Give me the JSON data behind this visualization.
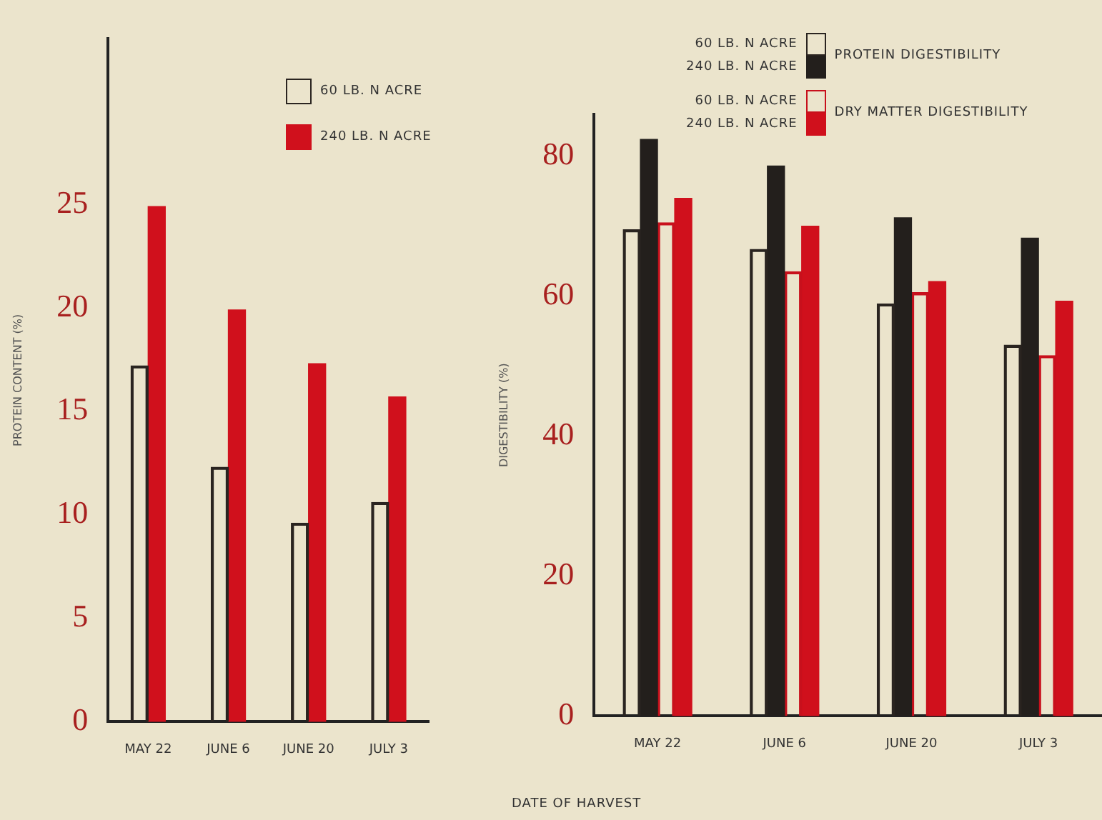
{
  "chart_data": [
    {
      "type": "bar",
      "ylabel": "PROTEIN CONTENT (%)",
      "categories": [
        "MAY 22",
        "JUNE 6",
        "JUNE 20",
        "JULY 3"
      ],
      "series": [
        {
          "name": "60 LB. N ACRE",
          "color": "#2a2420",
          "values": [
            17.2,
            12.3,
            9.6,
            10.6
          ]
        },
        {
          "name": "240 LB. N ACRE",
          "color": "#d0101c",
          "values": [
            24.9,
            19.9,
            17.3,
            15.7
          ]
        }
      ],
      "ylim": [
        0,
        33
      ],
      "yticks": [
        0,
        5,
        10,
        15,
        20,
        25
      ],
      "grid": false,
      "legend": "top"
    },
    {
      "type": "bar",
      "xlabel": "DATE OF HARVEST",
      "ylabel": "DIGESTIBILITY (%)",
      "categories": [
        "MAY 22",
        "JUNE 6",
        "JUNE 20",
        "JULY 3"
      ],
      "series": [
        {
          "name": "60 LB. N ACRE",
          "color": "#2a2420",
          "values": [
            69.5,
            66.7,
            58.9,
            53
          ]
        },
        {
          "name": "240 LB. N ACRE",
          "color": "#231f1c",
          "values": [
            82.4,
            78.6,
            71.2,
            68.3
          ]
        },
        {
          "name": "60 LB. N ACRE",
          "color": "#c8101c",
          "values": [
            70.5,
            63.5,
            60.5,
            51.5
          ]
        },
        {
          "name": "240 LB. N ACRE",
          "color": "#d0101c",
          "values": [
            74,
            70,
            62.1,
            59.3
          ]
        }
      ],
      "annotations": [
        "PROTEIN DIGESTIBILITY",
        "DRY MATTER DIGESTIBILITY"
      ],
      "ylim": [
        0,
        86
      ],
      "yticks": [
        0,
        20,
        40,
        60,
        80
      ],
      "grid": false,
      "legend": "top"
    }
  ]
}
